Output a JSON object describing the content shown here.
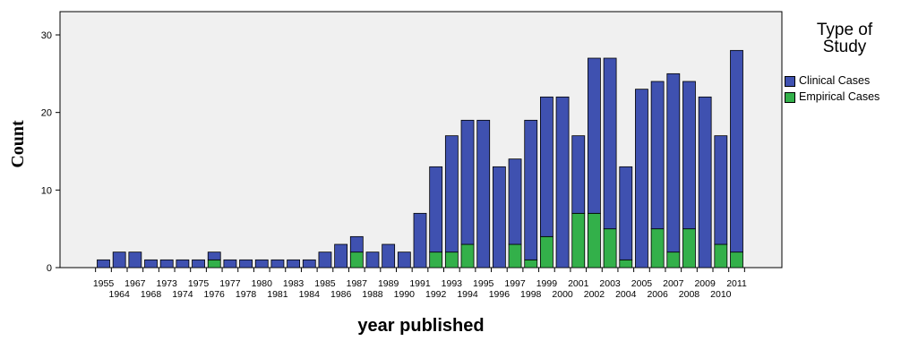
{
  "chart_data": {
    "type": "bar",
    "stacked": true,
    "xlabel": "year published",
    "ylabel": "Count",
    "ylim": [
      0,
      33
    ],
    "yticks": [
      0,
      10,
      20,
      30
    ],
    "grid": false,
    "legend": {
      "title_lines": [
        "Type of",
        "Study"
      ],
      "placement": "right"
    },
    "categories": [
      "1955",
      "1964",
      "1967",
      "1968",
      "1973",
      "1974",
      "1975",
      "1976",
      "1977",
      "1978",
      "1980",
      "1981",
      "1983",
      "1984",
      "1985",
      "1986",
      "1987",
      "1988",
      "1989",
      "1990",
      "1991",
      "1992",
      "1993",
      "1994",
      "1995",
      "1996",
      "1997",
      "1998",
      "1999",
      "2000",
      "2001",
      "2002",
      "2003",
      "2004",
      "2005",
      "2006",
      "2007",
      "2008",
      "2009",
      "2010",
      "2011"
    ],
    "series": [
      {
        "name": "Clinical Cases",
        "color": "#3f51b0",
        "values": [
          1,
          2,
          2,
          1,
          1,
          1,
          1,
          1,
          1,
          1,
          1,
          1,
          1,
          1,
          2,
          3,
          2,
          2,
          3,
          2,
          7,
          11,
          15,
          16,
          19,
          13,
          11,
          18,
          18,
          22,
          10,
          20,
          22,
          12,
          23,
          19,
          23,
          19,
          22,
          14,
          26
        ]
      },
      {
        "name": "Empirical Cases",
        "color": "#33b04a",
        "values": [
          0,
          0,
          0,
          0,
          0,
          0,
          0,
          1,
          0,
          0,
          0,
          0,
          0,
          0,
          0,
          0,
          2,
          0,
          0,
          0,
          0,
          2,
          2,
          3,
          0,
          0,
          3,
          1,
          4,
          0,
          7,
          7,
          5,
          1,
          0,
          5,
          2,
          5,
          0,
          3,
          2
        ]
      }
    ]
  }
}
